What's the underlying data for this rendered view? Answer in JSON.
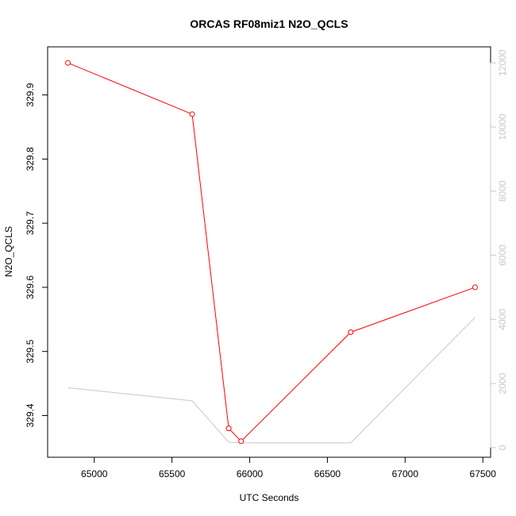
{
  "chart_data": {
    "type": "line",
    "title": "ORCAS RF08miz1 N2O_QCLS",
    "xlabel": "UTC Seconds",
    "ylabel": "N2O_QCLS",
    "xlim": [
      64700,
      67550
    ],
    "ylim": [
      329.335,
      329.975
    ],
    "x_ticks": [
      65000,
      65500,
      66000,
      66500,
      67000,
      67500
    ],
    "y_ticks": [
      329.4,
      329.5,
      329.6,
      329.7,
      329.8,
      329.9
    ],
    "y2lim": [
      -300,
      12500
    ],
    "y2_ticks": [
      0,
      2000,
      4000,
      6000,
      8000,
      10000,
      12000
    ],
    "grid": false,
    "colors": {
      "primary": "#ff0000",
      "secondary": "#c8c8c8",
      "axis": "#000000"
    },
    "series": [
      {
        "axis": "left",
        "marker": "circle",
        "color": "#ff0000",
        "x": [
          64830,
          65630,
          65865,
          65945,
          66650,
          67450
        ],
        "y": [
          329.95,
          329.87,
          329.38,
          329.36,
          329.53,
          329.6
        ]
      },
      {
        "axis": "right",
        "marker": "none",
        "color": "#c8c8c8",
        "x": [
          64830,
          65630,
          65865,
          65945,
          66650,
          67450
        ],
        "y": [
          1870,
          1460,
          170,
          150,
          150,
          4060
        ]
      }
    ]
  }
}
